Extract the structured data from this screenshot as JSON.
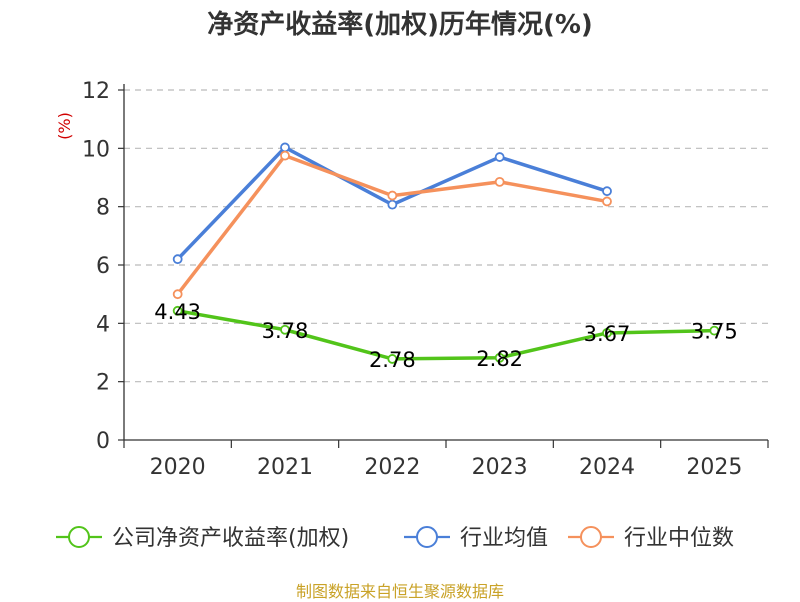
{
  "chart_data": {
    "type": "line",
    "title": "净资产收益率(加权)历年情况(%)",
    "unit": "(%)",
    "categories": [
      "2020",
      "2021",
      "2022",
      "2023",
      "2024",
      "2025"
    ],
    "ylim": [
      0,
      12
    ],
    "yticks": [
      0,
      2,
      4,
      6,
      8,
      10,
      12
    ],
    "grid": true,
    "legend_position": "bottom",
    "series": [
      {
        "name": "公司净资产收益率(加权)",
        "color": "#52c41a",
        "values": [
          4.43,
          3.78,
          2.78,
          2.82,
          3.67,
          3.75
        ],
        "show_labels": true
      },
      {
        "name": "行业均值",
        "color": "#4a7fd8",
        "values": [
          6.2,
          10.03,
          8.07,
          9.7,
          8.53,
          null
        ],
        "show_labels": false
      },
      {
        "name": "行业中位数",
        "color": "#f5915c",
        "values": [
          5.0,
          9.75,
          8.38,
          8.85,
          8.18,
          null
        ],
        "show_labels": false
      }
    ]
  },
  "source": "制图数据来自恒生聚源数据库"
}
